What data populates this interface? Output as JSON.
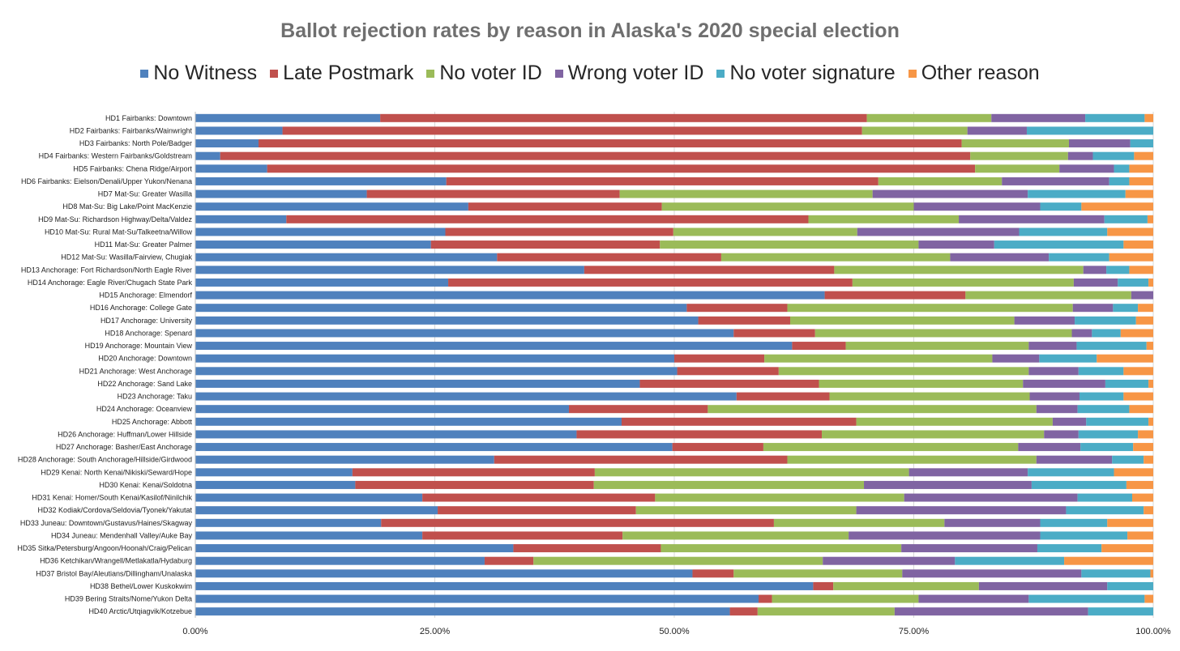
{
  "chart_data": {
    "type": "bar",
    "orientation": "horizontal",
    "stacked": "percent",
    "title": "Ballot rejection rates by reason in Alaska's 2020 special election",
    "xlabel": "",
    "ylabel": "",
    "xlim": [
      0,
      100
    ],
    "x_ticks": [
      "0.00%",
      "25.00%",
      "50.00%",
      "75.00%",
      "100.00%"
    ],
    "grid": "vertical",
    "legend_position": "top",
    "categories": [
      "HD1 Fairbanks: Downtown",
      "HD2 Fairbanks: Fairbanks/Wainwright",
      "HD3 Fairbanks: North Pole/Badger",
      "HD4 Fairbanks: Western Fairbanks/Goldstream",
      "HD5 Fairbanks: Chena Ridge/Airport",
      "HD6 Fairbanks: Eielson/Denali/Upper Yukon/Nenana",
      "HD7 Mat-Su: Greater Wasilla",
      "HD8 Mat-Su: Big Lake/Point MacKenzie",
      "HD9 Mat-Su: Richardson Highway/Delta/Valdez",
      "HD10 Mat-Su: Rural Mat-Su/Talkeetna/Willow",
      "HD11 Mat-Su: Greater Palmer",
      "HD12 Mat-Su: Wasilla/Fairview, Chugiak",
      "HD13 Anchorage: Fort Richardson/North Eagle River",
      "HD14 Anchorage: Eagle River/Chugach State Park",
      "HD15 Anchorage: Elmendorf",
      "HD16 Anchorage: College Gate",
      "HD17 Anchorage: University",
      "HD18 Anchorage: Spenard",
      "HD19 Anchorage: Mountain View",
      "HD20 Anchorage: Downtown",
      "HD21 Anchorage: West Anchorage",
      "HD22 Anchorage: Sand Lake",
      "HD23 Anchorage: Taku",
      "HD24 Anchorage: Oceanview",
      "HD25 Anchorage: Abbott",
      "HD26 Anchorage: Huffman/Lower Hillside",
      "HD27 Anchorage: Basher/East Anchorage",
      "HD28 Anchorage: South Anchorage/Hillside/Girdwood",
      "HD29 Kenai: North Kenai/Nikiski/Seward/Hope",
      "HD30 Kenai: Kenai/Soldotna",
      "HD31 Kenai: Homer/South Kenai/Kasilof/Ninilchik",
      "HD32 Kodiak/Cordova/Seldovia/Tyonek/Yakutat",
      "HD33 Juneau: Downtown/Gustavus/Haines/Skagway",
      "HD34 Juneau: Mendenhall Valley/Auke Bay",
      "HD35 Sitka/Petersburg/Angoon/Hoonah/Craig/Pelican",
      "HD36 Ketchikan/Wrangell/Metlakatla/Hydaburg",
      "HD37 Bristol Bay/Aleutians/Dillingham/Unalaska",
      "HD38 Bethel/Lower Kuskokwim",
      "HD39 Bering Straits/Nome/Yukon Delta",
      "HD40 Arctic/Utqiagvik/Kotzebue"
    ],
    "series": [
      {
        "name": "No Witness",
        "color": "#4f81bd",
        "values": [
          19.3,
          9.1,
          6.6,
          2.6,
          7.5,
          26.2,
          17.9,
          28.5,
          9.5,
          26.1,
          24.6,
          31.5,
          40.6,
          26.4,
          65.7,
          51.3,
          52.5,
          56.2,
          62.3,
          50.0,
          50.3,
          46.4,
          56.5,
          39.0,
          44.5,
          39.8,
          49.8,
          31.2,
          16.4,
          16.7,
          23.7,
          25.3,
          19.4,
          23.7,
          33.2,
          30.2,
          51.9,
          64.5,
          58.8,
          55.8
        ]
      },
      {
        "name": "Late Postmark",
        "color": "#c0504d",
        "values": [
          50.8,
          60.5,
          73.4,
          78.3,
          73.9,
          45.1,
          26.4,
          20.2,
          54.5,
          23.8,
          23.9,
          23.4,
          26.1,
          42.2,
          14.7,
          10.5,
          9.6,
          8.5,
          5.6,
          9.4,
          10.6,
          18.7,
          9.7,
          14.5,
          24.5,
          25.6,
          9.5,
          30.6,
          25.3,
          24.9,
          24.3,
          20.7,
          41.0,
          20.9,
          15.4,
          5.1,
          4.3,
          2.1,
          1.4,
          2.9
        ]
      },
      {
        "name": "No voter ID",
        "color": "#9bbb59",
        "values": [
          13.0,
          11.0,
          11.2,
          10.2,
          8.8,
          12.9,
          26.4,
          26.3,
          15.7,
          19.2,
          27.0,
          23.9,
          26.0,
          23.1,
          17.3,
          29.8,
          23.4,
          26.8,
          19.1,
          23.8,
          26.1,
          21.3,
          20.9,
          34.3,
          20.5,
          23.2,
          26.6,
          26.0,
          32.8,
          28.2,
          26.0,
          23.0,
          17.8,
          23.6,
          25.1,
          30.2,
          17.6,
          15.2,
          15.3,
          14.3
        ]
      },
      {
        "name": "Wrong voter ID",
        "color": "#8064a2",
        "values": [
          9.8,
          6.2,
          6.4,
          2.6,
          5.7,
          11.2,
          16.2,
          13.2,
          15.2,
          16.9,
          7.9,
          10.3,
          2.4,
          4.6,
          2.3,
          4.2,
          6.3,
          2.1,
          5.0,
          4.9,
          5.2,
          8.6,
          5.2,
          4.3,
          3.5,
          3.6,
          6.5,
          7.9,
          12.4,
          17.5,
          18.1,
          21.9,
          10.0,
          20.0,
          14.2,
          13.8,
          18.7,
          13.4,
          11.5,
          20.2
        ]
      },
      {
        "name": "No voter signature",
        "color": "#4bacc6",
        "values": [
          6.2,
          13.2,
          2.4,
          4.3,
          1.6,
          2.1,
          10.2,
          4.3,
          4.5,
          9.2,
          13.5,
          6.3,
          2.4,
          3.2,
          0.0,
          2.6,
          6.4,
          3.0,
          7.3,
          6.0,
          4.7,
          4.5,
          4.6,
          5.4,
          6.5,
          6.2,
          5.5,
          3.3,
          9.0,
          9.9,
          5.7,
          8.1,
          7.0,
          9.1,
          6.7,
          11.4,
          7.2,
          4.8,
          12.1,
          6.8
        ]
      },
      {
        "name": "Other reason",
        "color": "#f79646",
        "values": [
          0.9,
          0.0,
          0.0,
          2.0,
          2.5,
          2.5,
          2.9,
          7.5,
          0.6,
          4.8,
          3.1,
          4.6,
          2.5,
          0.5,
          0.0,
          1.6,
          1.8,
          3.4,
          0.7,
          5.9,
          3.1,
          0.5,
          3.1,
          2.5,
          0.5,
          1.6,
          2.1,
          1.0,
          4.1,
          2.8,
          2.2,
          1.0,
          4.8,
          2.7,
          5.4,
          9.3,
          0.3,
          0.0,
          0.9,
          0.0
        ]
      }
    ]
  }
}
